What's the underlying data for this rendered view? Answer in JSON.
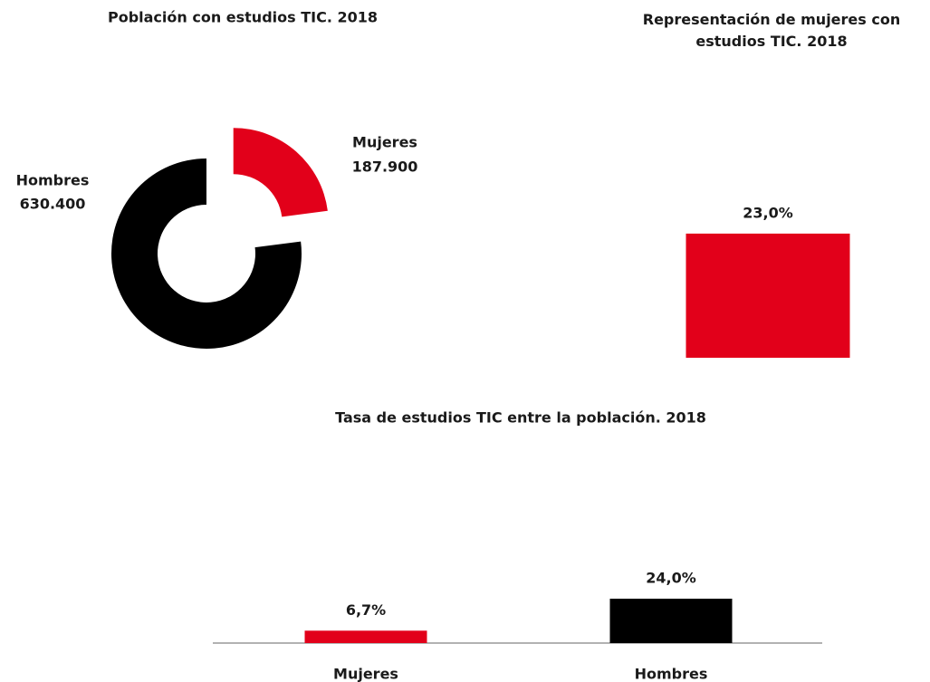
{
  "chart_data": [
    {
      "type": "pie",
      "donut": true,
      "title": "Población con estudios TIC. 2018",
      "categories": [
        "Mujeres",
        "Hombres"
      ],
      "values": [
        187900,
        630400
      ],
      "value_labels": [
        "187.900",
        "630.400"
      ],
      "colors": [
        "#e2001a",
        "#000000"
      ]
    },
    {
      "type": "bar",
      "title": "Representación de mujeres con estudios TIC. 2018",
      "categories": [
        null
      ],
      "values": [
        23.0
      ],
      "value_labels": [
        "23,0%"
      ],
      "colors": [
        "#e2001a"
      ]
    },
    {
      "type": "bar",
      "title": "Tasa de estudios TIC entre la población. 2018",
      "categories": [
        "Mujeres",
        "Hombres"
      ],
      "values": [
        6.7,
        24.0
      ],
      "value_labels": [
        "6,7%",
        "24,0%"
      ],
      "colors": [
        "#e2001a",
        "#000000"
      ]
    }
  ]
}
